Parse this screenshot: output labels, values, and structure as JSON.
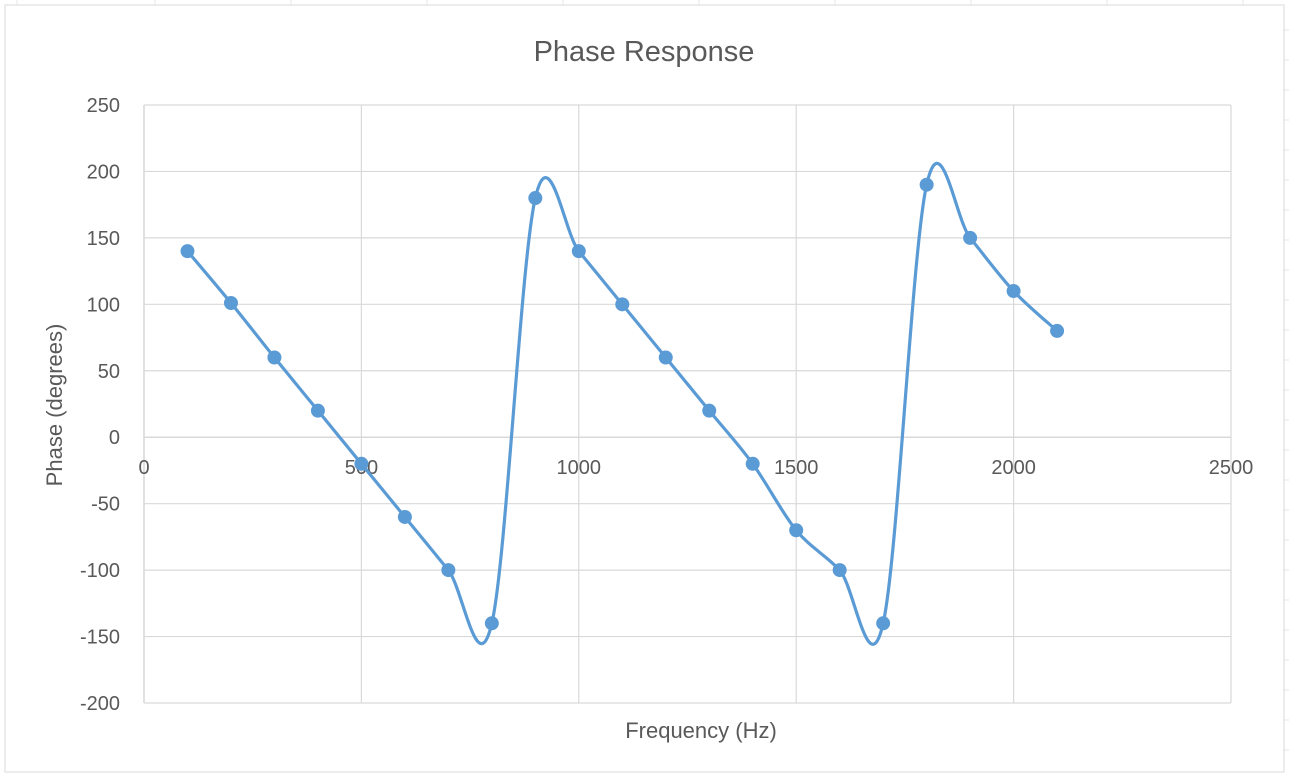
{
  "chart_data": {
    "type": "scatter",
    "title": "Phase Response",
    "xlabel": "Frequency (Hz)",
    "ylabel": "Phase (degrees)",
    "xlim": [
      0,
      2500
    ],
    "ylim": [
      -200,
      250
    ],
    "x_ticks": [
      0,
      500,
      1000,
      1500,
      2000,
      2500
    ],
    "y_ticks": [
      250,
      200,
      150,
      100,
      50,
      0,
      -50,
      -100,
      -150,
      -200
    ],
    "grid": true,
    "legend": "none",
    "line_style": "smooth",
    "series": [
      {
        "color": "#5b9bd5",
        "x": [
          100,
          200,
          300,
          400,
          500,
          600,
          700,
          800,
          900,
          1000,
          1100,
          1200,
          1300,
          1400,
          1500,
          1600,
          1700,
          1800,
          1900,
          2000,
          2100
        ],
        "y": [
          140,
          101,
          60,
          20,
          -20,
          -60,
          -100,
          -140,
          180,
          140,
          100,
          60,
          20,
          -20,
          -70,
          -100,
          -140,
          190,
          150,
          110,
          80
        ]
      }
    ]
  },
  "colors": {
    "grid": "#d9d9d9",
    "text": "#595959",
    "series": "#5b9bd5",
    "sheet_gridline": "#e7e7e7"
  }
}
